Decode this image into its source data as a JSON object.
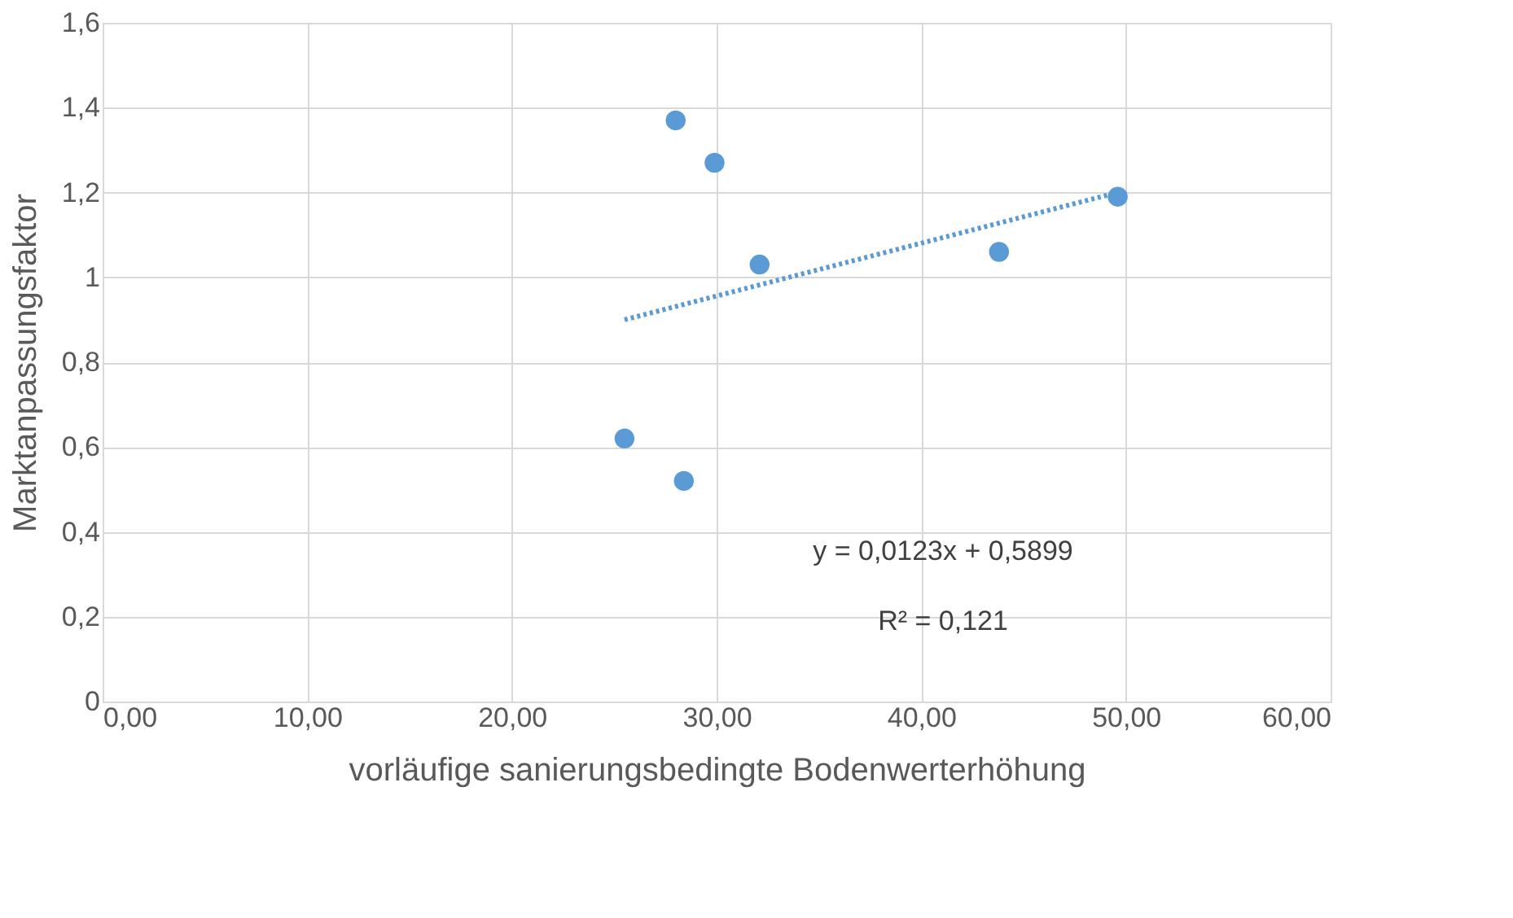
{
  "chart_data": {
    "type": "scatter",
    "xlabel": "vorläufige sanierungsbedingte Bodenwerterhöhung",
    "ylabel": "Marktanpassungsfaktor",
    "xlim": [
      0,
      60
    ],
    "ylim": [
      0,
      1.6
    ],
    "xticks": [
      {
        "value": 0,
        "label": "0,00"
      },
      {
        "value": 10,
        "label": "10,00"
      },
      {
        "value": 20,
        "label": "20,00"
      },
      {
        "value": 30,
        "label": "30,00"
      },
      {
        "value": 40,
        "label": "40,00"
      },
      {
        "value": 50,
        "label": "50,00"
      },
      {
        "value": 60,
        "label": "60,00"
      }
    ],
    "yticks": [
      0,
      {
        "value": 0.2,
        "label": "0,2"
      },
      {
        "value": 0.4,
        "label": "0,4"
      },
      {
        "value": 0.6,
        "label": "0,6"
      },
      {
        "value": 0.8,
        "label": "0,8"
      },
      1,
      {
        "value": 1.2,
        "label": "1,2"
      },
      {
        "value": 1.4,
        "label": "1,4"
      },
      {
        "value": 1.6,
        "label": "1,6"
      }
    ],
    "grid": true,
    "series": [
      {
        "marker": "circle",
        "color": "#5b9bd5",
        "x": [
          25.5,
          28.0,
          28.4,
          29.9,
          32.1,
          43.8,
          49.6
        ],
        "values": [
          0.62,
          1.37,
          0.52,
          1.27,
          1.03,
          1.06,
          1.19
        ]
      },
      {
        "type": "line",
        "marker": "none",
        "color": "#5b9bd5",
        "line_style": "dotted",
        "x": [
          25.5,
          49.6
        ],
        "values": [
          0.9,
          1.2
        ]
      }
    ],
    "annotations": [
      "y = 0,0123x + 0,5899",
      "R² = 0,121"
    ]
  }
}
